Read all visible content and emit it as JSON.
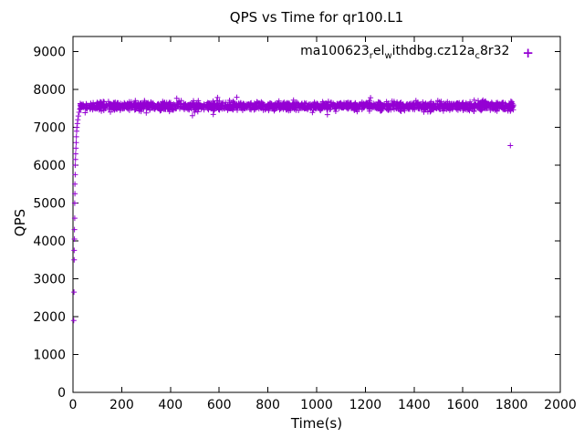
{
  "chart": {
    "title": "QPS vs Time for qr100.L1",
    "xlabel": "Time(s)",
    "ylabel": "QPS",
    "legend": {
      "label_plain": "ma100623_rel_withdbg.cz12a_c8r32",
      "segments": [
        {
          "t": "ma100623",
          "sub": false
        },
        {
          "t": "r",
          "sub": true
        },
        {
          "t": "el",
          "sub": false
        },
        {
          "t": "w",
          "sub": true
        },
        {
          "t": "ithdbg.cz12a",
          "sub": false
        },
        {
          "t": "c",
          "sub": true
        },
        {
          "t": "8r32",
          "sub": false
        }
      ],
      "marker": "+"
    },
    "colors": {
      "marker": "#9400D3",
      "axis": "#000000",
      "background": "#FFFFFF"
    }
  },
  "chart_data": {
    "type": "scatter",
    "title": "QPS vs Time for qr100.L1",
    "xlabel": "Time(s)",
    "ylabel": "QPS",
    "xlim": [
      0,
      2000
    ],
    "ylim": [
      0,
      9400
    ],
    "x_ticks": [
      0,
      200,
      400,
      600,
      800,
      1000,
      1200,
      1400,
      1600,
      1800,
      2000
    ],
    "y_ticks": [
      0,
      1000,
      2000,
      3000,
      4000,
      5000,
      6000,
      7000,
      8000,
      9000
    ],
    "grid": false,
    "legend_position": "top-right",
    "series": [
      {
        "name": "ma100623_rel_withdbg.cz12a_c8r32",
        "marker": "plus",
        "color": "#9400D3",
        "ramp_points": [
          [
            3,
            1900
          ],
          [
            4,
            2650
          ],
          [
            5,
            3500
          ],
          [
            5,
            3750
          ],
          [
            6,
            4050
          ],
          [
            6,
            4300
          ],
          [
            7,
            4600
          ],
          [
            7,
            5000
          ],
          [
            8,
            5250
          ],
          [
            8,
            5500
          ],
          [
            9,
            5750
          ],
          [
            9,
            6000
          ],
          [
            10,
            6150
          ],
          [
            11,
            6300
          ],
          [
            12,
            6450
          ],
          [
            13,
            6600
          ],
          [
            14,
            6750
          ],
          [
            15,
            6900
          ],
          [
            16,
            7000
          ],
          [
            18,
            7100
          ],
          [
            20,
            7200
          ],
          [
            22,
            7300
          ],
          [
            25,
            7400
          ],
          [
            28,
            7480
          ]
        ],
        "band": {
          "x_start": 28,
          "x_end": 1808,
          "y_mean": 7560,
          "y_spread": 250,
          "count": 1900,
          "seed": 42
        },
        "outliers": [
          [
            1795,
            6520
          ]
        ]
      }
    ]
  }
}
